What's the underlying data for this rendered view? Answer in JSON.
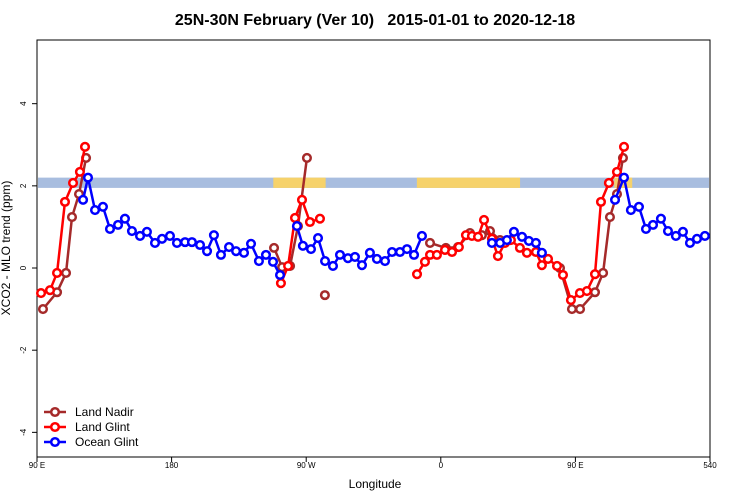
{
  "chart_data": {
    "type": "line",
    "title": "25N-30N February (Ver 10)   2015-01-01 to 2020-12-18",
    "x_label": "Longitude",
    "y_label": "XCO2 - MLO trend (ppm)",
    "xlim": [
      90,
      540
    ],
    "ylim": [
      -4.6,
      5.55
    ],
    "xticks": [
      {
        "value": 90,
        "label": "90 E"
      },
      180,
      {
        "value": 270,
        "label": "90 W"
      },
      {
        "value": 360,
        "label": "0"
      },
      {
        "value": 450,
        "label": "90 E"
      },
      540
    ],
    "yticks": [
      -4,
      -2,
      0,
      2,
      4
    ],
    "legend": "bottom-left",
    "band": {
      "ymin": 1.95,
      "ymax": 2.2,
      "color": "#a8bddf",
      "highlight_color": "#f6d26b",
      "highlight_ranges": [
        [
          248,
          283
        ],
        [
          344,
          413
        ],
        [
          476,
          488
        ]
      ]
    },
    "series": [
      {
        "name": "Land Nadir",
        "color": "#a52a2a",
        "x": [
          94.0,
          103.4,
          109.4,
          113.4,
          118.1,
          122.8,
          null,
          248.5,
          253.9,
          259.2,
          264.5,
          270.5,
          null,
          282.5,
          null,
          352.8,
          363.4,
          371.5,
          379.5,
          387.5,
          392.9,
          399.6,
          null,
          439.7,
          447.7,
          453.1,
          463.1,
          468.5,
          473.1,
          477.8,
          481.8
        ],
        "values": [
          -1.0,
          -0.59,
          -0.12,
          1.24,
          1.8,
          2.68,
          null,
          0.49,
          0.02,
          0.05,
          1.02,
          2.68,
          null,
          -0.66,
          null,
          0.61,
          0.49,
          0.51,
          0.85,
          0.8,
          0.9,
          0.68,
          null,
          0.0,
          -1.0,
          -1.0,
          -0.59,
          -0.12,
          1.24,
          1.8,
          2.68
        ]
      },
      {
        "name": "Land Glint",
        "color": "#ff0000",
        "x": [
          92.7,
          98.7,
          103.4,
          108.7,
          114.1,
          118.7,
          122.1,
          null,
          253.1,
          257.9,
          262.5,
          267.2,
          272.5,
          279.2,
          null,
          344.1,
          349.4,
          352.8,
          357.4,
          362.8,
          367.5,
          372.1,
          376.8,
          380.8,
          384.9,
          388.9,
          394.2,
          398.2,
          402.9,
          406.9,
          412.9,
          417.6,
          423.6,
          427.6,
          431.7,
          437.7,
          441.7,
          447.0,
          453.0,
          457.7,
          463.1,
          467.1,
          472.4,
          477.8,
          482.5
        ],
        "values": [
          -0.61,
          -0.54,
          -0.12,
          1.61,
          2.07,
          2.34,
          2.95,
          null,
          -0.37,
          0.05,
          1.22,
          1.66,
          1.12,
          1.2,
          null,
          -0.15,
          0.15,
          0.32,
          0.32,
          0.44,
          0.39,
          0.51,
          0.8,
          0.78,
          0.76,
          1.17,
          0.71,
          0.29,
          0.61,
          0.68,
          0.49,
          0.37,
          0.39,
          0.07,
          0.22,
          0.05,
          -0.17,
          -0.78,
          -0.61,
          -0.56,
          -0.15,
          1.61,
          2.07,
          2.34,
          2.95
        ]
      },
      {
        "name": "Ocean Glint",
        "color": "#0000ff",
        "x": [
          120.8,
          124.1,
          128.8,
          134.1,
          138.8,
          144.2,
          148.8,
          153.5,
          158.9,
          163.5,
          168.9,
          173.6,
          178.9,
          183.6,
          189.0,
          193.6,
          199.0,
          203.7,
          208.3,
          213.0,
          218.4,
          223.1,
          228.4,
          233.1,
          238.4,
          243.1,
          247.8,
          252.5,
          null,
          263.8,
          267.8,
          273.2,
          277.9,
          282.6,
          287.9,
          292.6,
          297.9,
          302.6,
          307.3,
          312.6,
          317.3,
          322.7,
          327.4,
          332.7,
          337.4,
          342.1,
          347.4,
          null,
          394.2,
          399.6,
          404.2,
          408.9,
          414.3,
          418.9,
          423.6,
          427.6,
          null,
          476.5,
          482.5,
          487.1,
          492.5,
          497.2,
          501.9,
          507.2,
          511.9,
          517.2,
          521.9,
          526.6,
          531.3,
          536.6
        ],
        "values": [
          1.66,
          2.2,
          1.41,
          1.49,
          0.95,
          1.05,
          1.2,
          0.9,
          0.78,
          0.88,
          0.61,
          0.71,
          0.78,
          0.61,
          0.63,
          0.63,
          0.56,
          0.41,
          0.8,
          0.32,
          0.51,
          0.41,
          0.37,
          0.59,
          0.17,
          0.32,
          0.15,
          -0.17,
          null,
          1.02,
          0.54,
          0.46,
          0.73,
          0.17,
          0.05,
          0.32,
          0.24,
          0.27,
          0.07,
          0.37,
          0.22,
          0.17,
          0.39,
          0.39,
          0.46,
          0.32,
          0.78,
          null,
          0.61,
          0.61,
          0.68,
          0.88,
          0.76,
          0.66,
          0.61,
          0.37,
          null,
          1.66,
          2.2,
          1.41,
          1.49,
          0.95,
          1.05,
          1.2,
          0.9,
          0.78,
          0.88,
          0.61,
          0.71,
          0.78
        ]
      }
    ]
  }
}
